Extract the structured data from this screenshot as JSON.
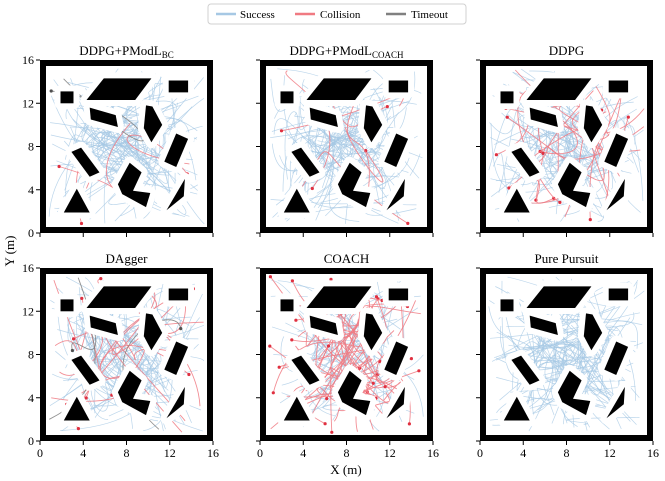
{
  "legend": {
    "items": [
      {
        "label": "Success",
        "color": "#a6c8e4"
      },
      {
        "label": "Collision",
        "color": "#f07a82"
      },
      {
        "label": "Timeout",
        "color": "#808080"
      }
    ]
  },
  "axes": {
    "xlabel": "X (m)",
    "ylabel": "Y (m)",
    "xticks": [
      "0",
      "4",
      "8",
      "12",
      "16"
    ],
    "yticks": [
      "0",
      "4",
      "8",
      "12",
      "16"
    ]
  },
  "chart_data": [
    {
      "type": "line",
      "title": "DDPG+PModL",
      "title_subscript": "BC",
      "xlim": [
        0,
        16
      ],
      "ylim": [
        0,
        16
      ],
      "outcome_density": {
        "Success": 0.96,
        "Collision": 0.03,
        "Timeout": 0.01
      }
    },
    {
      "type": "line",
      "title": "DDPG+PModL",
      "title_subscript": "COACH",
      "xlim": [
        0,
        16
      ],
      "ylim": [
        0,
        16
      ],
      "outcome_density": {
        "Success": 0.93,
        "Collision": 0.07,
        "Timeout": 0.0
      }
    },
    {
      "type": "line",
      "title": "DDPG",
      "title_subscript": "",
      "xlim": [
        0,
        16
      ],
      "ylim": [
        0,
        16
      ],
      "outcome_density": {
        "Success": 0.8,
        "Collision": 0.2,
        "Timeout": 0.0
      }
    },
    {
      "type": "line",
      "title": "DAgger",
      "title_subscript": "",
      "xlim": [
        0,
        16
      ],
      "ylim": [
        0,
        16
      ],
      "outcome_density": {
        "Success": 0.82,
        "Collision": 0.15,
        "Timeout": 0.03
      }
    },
    {
      "type": "line",
      "title": "COACH",
      "title_subscript": "",
      "xlim": [
        0,
        16
      ],
      "ylim": [
        0,
        16
      ],
      "outcome_density": {
        "Success": 0.55,
        "Collision": 0.45,
        "Timeout": 0.0
      }
    },
    {
      "type": "line",
      "title": "Pure Pursuit",
      "title_subscript": "",
      "xlim": [
        0,
        16
      ],
      "ylim": [
        0,
        16
      ],
      "outcome_density": {
        "Success": 1.0,
        "Collision": 0.0,
        "Timeout": 0.0
      }
    }
  ],
  "obstacles": [
    {
      "name": "obstacle-small-square-left",
      "points": [
        [
          1.9,
          12
        ],
        [
          3.1,
          12
        ],
        [
          3.1,
          13.1
        ],
        [
          1.9,
          13.1
        ]
      ]
    },
    {
      "name": "obstacle-top-parallelogram",
      "points": [
        [
          4.3,
          12.3
        ],
        [
          8.8,
          12.3
        ],
        [
          10.3,
          14.3
        ],
        [
          5.9,
          14.3
        ]
      ]
    },
    {
      "name": "obstacle-small-square-right",
      "points": [
        [
          11.9,
          13
        ],
        [
          13.7,
          13
        ],
        [
          13.7,
          14.1
        ],
        [
          11.9,
          14.1
        ]
      ]
    },
    {
      "name": "obstacle-tilted-bar",
      "points": [
        [
          4.7,
          10.5
        ],
        [
          7.2,
          9.8
        ],
        [
          7,
          10.9
        ],
        [
          4.6,
          11.6
        ]
      ]
    },
    {
      "name": "obstacle-arrow-shape",
      "points": [
        [
          9.6,
          9.7
        ],
        [
          10.3,
          8.4
        ],
        [
          11.3,
          10
        ],
        [
          10.4,
          11.7
        ],
        [
          9.8,
          11.8
        ]
      ]
    },
    {
      "name": "obstacle-long-diagonal-bar",
      "points": [
        [
          2.9,
          7.5
        ],
        [
          3.8,
          7.9
        ],
        [
          5.5,
          5.6
        ],
        [
          4.6,
          5.2
        ]
      ]
    },
    {
      "name": "obstacle-right-rotated-bar",
      "points": [
        [
          12.6,
          9.2
        ],
        [
          13.7,
          8.7
        ],
        [
          12.6,
          6.1
        ],
        [
          11.5,
          6.6
        ]
      ]
    },
    {
      "name": "obstacle-chevron",
      "points": [
        [
          8.3,
          6.5
        ],
        [
          7.2,
          4.5
        ],
        [
          7.6,
          3.6
        ],
        [
          9.8,
          2.4
        ],
        [
          10.2,
          3.7
        ],
        [
          8.6,
          3.9
        ],
        [
          9.4,
          5.6
        ]
      ]
    },
    {
      "name": "obstacle-bottom-left-triangle",
      "points": [
        [
          2.2,
          1.9
        ],
        [
          4.6,
          1.9
        ],
        [
          3.4,
          4.1
        ]
      ]
    },
    {
      "name": "obstacle-bottom-right-triangle",
      "points": [
        [
          11.7,
          2.1
        ],
        [
          13.3,
          3.4
        ],
        [
          13.4,
          5
        ]
      ]
    }
  ]
}
